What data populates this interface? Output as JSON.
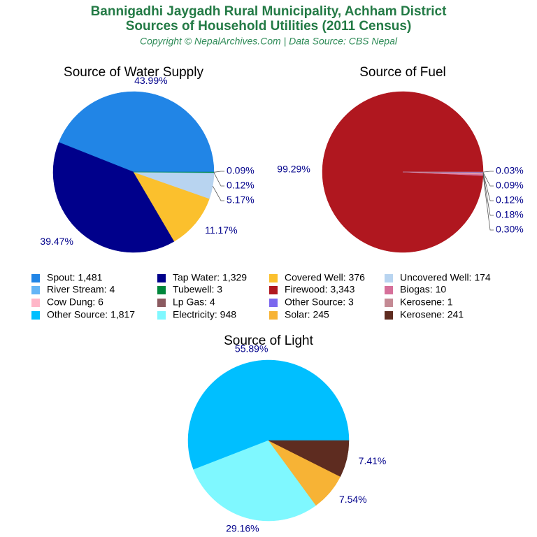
{
  "header": {
    "title_lines": [
      "Bannigadhi Jaygadh Rural Municipality, Achham District",
      "Sources of Household Utilities (2011 Census)"
    ],
    "subtitle": "Copyright © NepalArchives.Com | Data Source: CBS Nepal"
  },
  "chart_data": [
    {
      "type": "pie",
      "title": "Source of Water Supply",
      "categories": [
        "Spout: 1,481",
        "Tap Water: 1,329",
        "Covered Well: 376",
        "Uncovered Well: 174",
        "River Stream: 4",
        "Tubewell: 3"
      ],
      "values": [
        43.99,
        39.47,
        11.17,
        5.17,
        0.12,
        0.09
      ],
      "value_labels": [
        "43.99%",
        "39.47%",
        "11.17%",
        "5.17%",
        "0.12%",
        "0.09%"
      ],
      "colors": [
        "#2185e6",
        "#00008b",
        "#fbc02d",
        "#b8d4f0",
        "#64b5f6",
        "#00873c"
      ]
    },
    {
      "type": "pie",
      "title": "Source of Fuel",
      "categories": [
        "Firewood: 3,343",
        "Biogas: 10",
        "Cow Dung: 6",
        "Lp Gas: 4",
        "Other Source: 3",
        "Kerosene: 1"
      ],
      "values": [
        99.29,
        0.3,
        0.18,
        0.12,
        0.09,
        0.03
      ],
      "value_labels": [
        "99.29%",
        "0.30%",
        "0.18%",
        "0.12%",
        "0.09%",
        "0.03%"
      ],
      "colors": [
        "#b0171f",
        "#d6709a",
        "#ffb6c8",
        "#8b5a60",
        "#7b68ee",
        "#c48a94"
      ]
    },
    {
      "type": "pie",
      "title": "Source of Light",
      "categories": [
        "Other Source: 1,817",
        "Electricity: 948",
        "Solar: 245",
        "Kerosene: 241"
      ],
      "values": [
        55.89,
        29.16,
        7.54,
        7.41
      ],
      "value_labels": [
        "55.89%",
        "29.16%",
        "7.54%",
        "7.41%"
      ],
      "colors": [
        "#00bfff",
        "#7ff8ff",
        "#f7b335",
        "#5e2c20"
      ]
    }
  ]
}
